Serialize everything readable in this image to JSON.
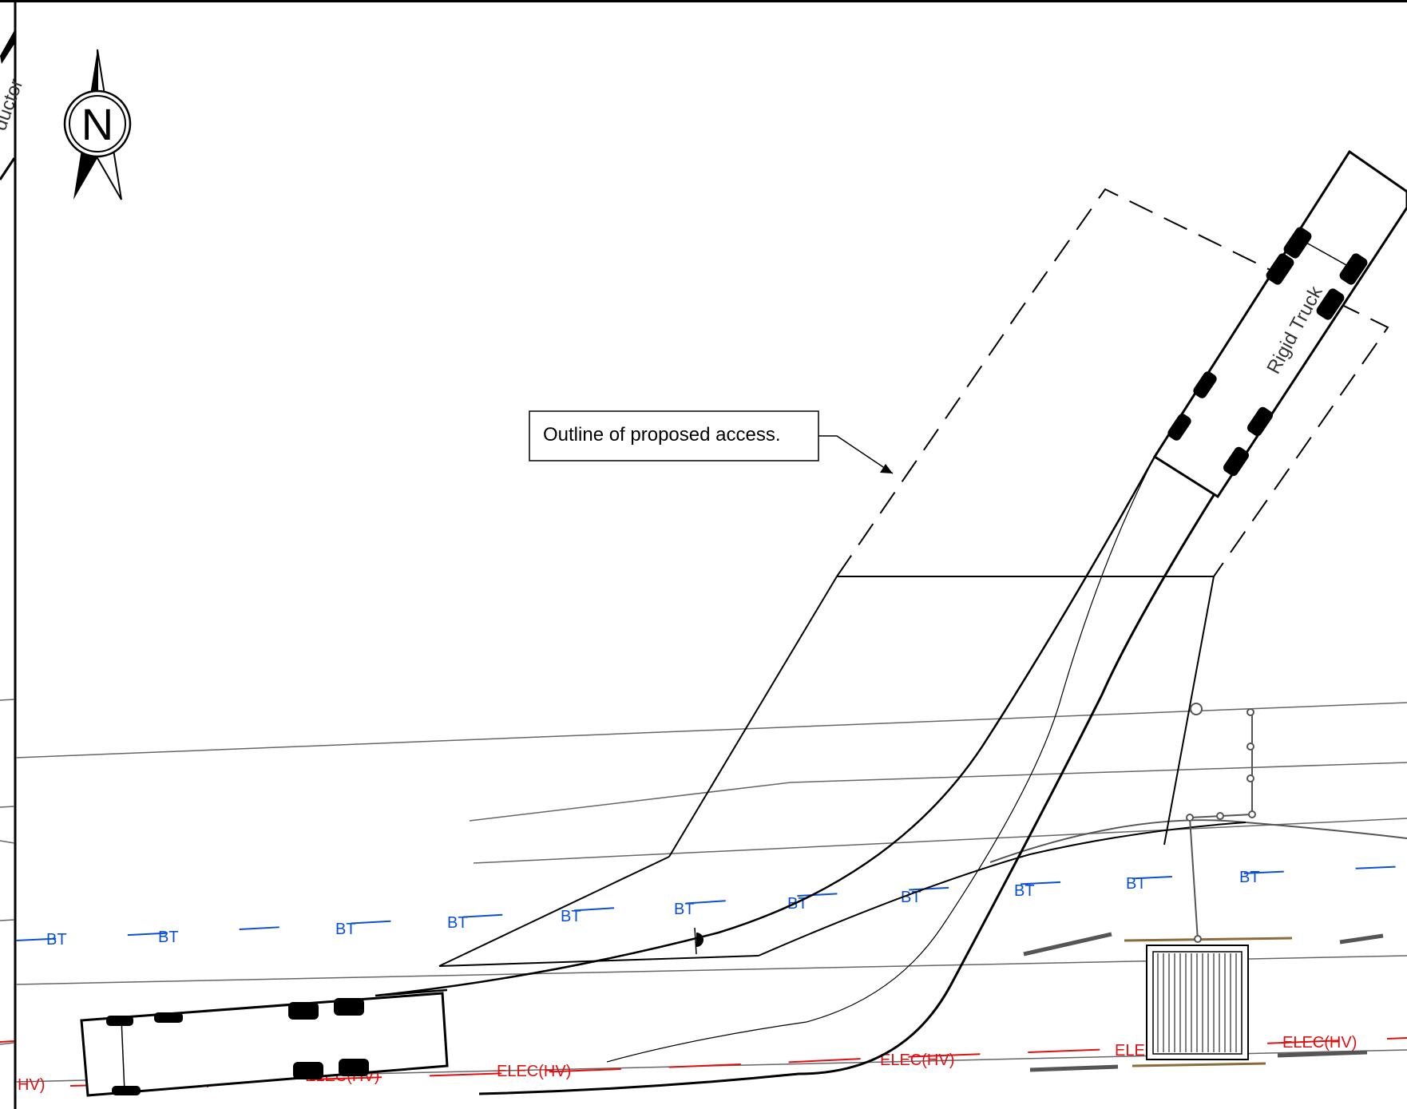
{
  "callout": {
    "label": "Outline of proposed access."
  },
  "north_arrow": {
    "letter": "N",
    "icon": "north-arrow-icon"
  },
  "vehicle": {
    "label": "Rigid Truck"
  },
  "edge_fragment": {
    "label": "ductor"
  },
  "utilities": {
    "bt": {
      "label": "BT",
      "color": "#0a4fd8"
    },
    "elec": {
      "label": "ELEC(HV)",
      "fragment": "HV)",
      "color": "#e01010"
    }
  }
}
